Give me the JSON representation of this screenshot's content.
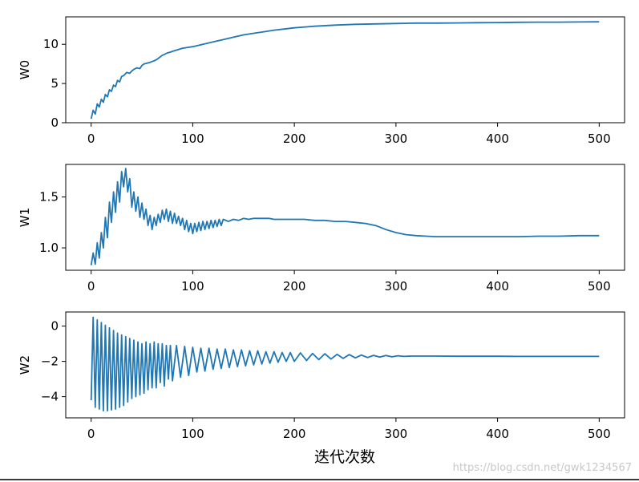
{
  "colors": {
    "line": "#1f77b4",
    "axes": "#000000",
    "watermark": "#c8c8c8"
  },
  "xlabel": "迭代次数",
  "watermark": "https://blog.csdn.net/gwk1234567",
  "chart_data": [
    {
      "type": "line",
      "ylabel": "W0",
      "xlim": [
        -25,
        525
      ],
      "ylim": [
        0,
        13.5
      ],
      "xticks": [
        0,
        100,
        200,
        300,
        400,
        500
      ],
      "yticks": [
        0,
        5,
        10
      ],
      "series": [
        {
          "x": [
            0,
            2,
            4,
            6,
            8,
            10,
            12,
            14,
            16,
            18,
            20,
            22,
            24,
            26,
            28,
            30,
            32,
            35,
            38,
            40,
            42,
            45,
            48,
            50,
            52,
            55,
            58,
            60,
            62,
            65,
            68,
            70,
            72,
            75,
            78,
            80,
            85,
            90,
            95,
            100,
            110,
            120,
            130,
            140,
            150,
            160,
            170,
            180,
            190,
            200,
            220,
            240,
            260,
            280,
            300,
            320,
            340,
            360,
            380,
            400,
            420,
            440,
            460,
            480,
            500
          ],
          "y": [
            0.5,
            1.6,
            1.1,
            2.4,
            2.0,
            3.0,
            2.6,
            3.6,
            3.3,
            4.2,
            4.0,
            4.8,
            4.6,
            5.4,
            5.2,
            5.9,
            6.0,
            6.4,
            6.3,
            6.6,
            6.8,
            7.0,
            6.9,
            7.3,
            7.5,
            7.6,
            7.7,
            7.8,
            7.9,
            8.1,
            8.4,
            8.6,
            8.7,
            8.9,
            9.0,
            9.1,
            9.3,
            9.5,
            9.6,
            9.7,
            10.0,
            10.3,
            10.6,
            10.9,
            11.2,
            11.4,
            11.6,
            11.8,
            11.95,
            12.1,
            12.3,
            12.45,
            12.55,
            12.6,
            12.65,
            12.7,
            12.7,
            12.72,
            12.75,
            12.77,
            12.8,
            12.82,
            12.83,
            12.85,
            12.87
          ]
        }
      ]
    },
    {
      "type": "line",
      "ylabel": "W1",
      "xlim": [
        -25,
        525
      ],
      "ylim": [
        0.78,
        1.82
      ],
      "xticks": [
        0,
        100,
        200,
        300,
        400,
        500
      ],
      "yticks": [
        1.0,
        1.5
      ],
      "yticklabels": [
        "1.0",
        "1.5"
      ],
      "series": [
        {
          "x": [
            0,
            2,
            4,
            6,
            8,
            10,
            12,
            14,
            16,
            18,
            20,
            22,
            24,
            26,
            28,
            30,
            32,
            34,
            36,
            38,
            40,
            42,
            44,
            46,
            48,
            50,
            52,
            54,
            56,
            58,
            60,
            62,
            64,
            66,
            68,
            70,
            72,
            74,
            76,
            78,
            80,
            82,
            84,
            86,
            88,
            90,
            92,
            94,
            96,
            98,
            100,
            102,
            104,
            106,
            108,
            110,
            112,
            114,
            116,
            118,
            120,
            122,
            124,
            126,
            128,
            130,
            135,
            140,
            145,
            150,
            155,
            160,
            165,
            170,
            175,
            180,
            190,
            200,
            210,
            220,
            230,
            240,
            250,
            260,
            270,
            280,
            290,
            300,
            310,
            320,
            330,
            340,
            350,
            360,
            380,
            400,
            420,
            440,
            460,
            480,
            500
          ],
          "y": [
            0.83,
            0.95,
            0.84,
            1.05,
            0.9,
            1.15,
            1.0,
            1.3,
            1.1,
            1.45,
            1.25,
            1.55,
            1.35,
            1.65,
            1.45,
            1.75,
            1.6,
            1.78,
            1.55,
            1.68,
            1.4,
            1.55,
            1.36,
            1.5,
            1.3,
            1.44,
            1.28,
            1.38,
            1.22,
            1.32,
            1.18,
            1.3,
            1.22,
            1.33,
            1.25,
            1.37,
            1.28,
            1.38,
            1.26,
            1.36,
            1.24,
            1.34,
            1.24,
            1.31,
            1.22,
            1.29,
            1.18,
            1.27,
            1.16,
            1.24,
            1.14,
            1.24,
            1.16,
            1.25,
            1.17,
            1.26,
            1.18,
            1.26,
            1.19,
            1.27,
            1.2,
            1.27,
            1.21,
            1.28,
            1.22,
            1.28,
            1.26,
            1.28,
            1.27,
            1.29,
            1.28,
            1.29,
            1.29,
            1.29,
            1.29,
            1.28,
            1.28,
            1.28,
            1.28,
            1.27,
            1.27,
            1.26,
            1.26,
            1.25,
            1.24,
            1.22,
            1.18,
            1.15,
            1.13,
            1.12,
            1.115,
            1.11,
            1.11,
            1.11,
            1.11,
            1.11,
            1.11,
            1.115,
            1.115,
            1.12,
            1.12
          ]
        }
      ]
    },
    {
      "type": "line",
      "ylabel": "W2",
      "xlim": [
        -25,
        525
      ],
      "ylim": [
        -5.2,
        0.8
      ],
      "xticks": [
        0,
        100,
        200,
        300,
        400,
        500
      ],
      "yticks": [
        -4,
        -2,
        0
      ],
      "yticklabels": [
        "−4",
        "−2",
        "0"
      ],
      "series": [
        {
          "x": [
            0,
            2,
            4,
            6,
            8,
            10,
            12,
            14,
            16,
            18,
            20,
            22,
            24,
            26,
            28,
            30,
            32,
            34,
            36,
            38,
            40,
            42,
            44,
            46,
            48,
            50,
            52,
            54,
            56,
            58,
            60,
            62,
            64,
            66,
            68,
            70,
            72,
            74,
            76,
            78,
            80,
            84,
            88,
            92,
            96,
            100,
            104,
            108,
            112,
            116,
            120,
            124,
            128,
            132,
            136,
            140,
            144,
            148,
            152,
            156,
            160,
            164,
            168,
            172,
            176,
            180,
            184,
            188,
            192,
            196,
            200,
            206,
            212,
            218,
            224,
            230,
            236,
            242,
            248,
            254,
            260,
            266,
            272,
            278,
            284,
            290,
            296,
            302,
            308,
            314,
            320,
            340,
            360,
            380,
            400,
            420,
            440,
            460,
            480,
            500
          ],
          "y": [
            -4.2,
            0.5,
            -4.6,
            0.35,
            -4.7,
            0.2,
            -4.8,
            0.05,
            -4.8,
            -0.1,
            -4.75,
            -0.25,
            -4.7,
            -0.4,
            -4.6,
            -0.5,
            -4.5,
            -0.6,
            -4.3,
            -0.7,
            -4.1,
            -0.8,
            -4.0,
            -0.9,
            -3.9,
            -1.0,
            -3.8,
            -0.9,
            -3.6,
            -1.0,
            -3.5,
            -0.9,
            -3.5,
            -1.0,
            -3.2,
            -1.0,
            -3.4,
            -1.1,
            -3.0,
            -1.1,
            -3.1,
            -1.1,
            -2.9,
            -1.15,
            -2.8,
            -1.2,
            -2.6,
            -1.25,
            -2.55,
            -1.25,
            -2.45,
            -1.3,
            -2.4,
            -1.3,
            -2.35,
            -1.35,
            -2.3,
            -1.35,
            -2.25,
            -1.4,
            -2.2,
            -1.4,
            -2.15,
            -1.45,
            -2.1,
            -1.45,
            -2.05,
            -1.5,
            -2.0,
            -1.5,
            -2.0,
            -1.52,
            -1.95,
            -1.55,
            -1.9,
            -1.57,
            -1.87,
            -1.6,
            -1.83,
            -1.62,
            -1.8,
            -1.64,
            -1.78,
            -1.66,
            -1.76,
            -1.67,
            -1.74,
            -1.68,
            -1.72,
            -1.7,
            -1.7,
            -1.7,
            -1.71,
            -1.71,
            -1.71,
            -1.72,
            -1.72,
            -1.72,
            -1.72,
            -1.72
          ]
        }
      ]
    }
  ]
}
